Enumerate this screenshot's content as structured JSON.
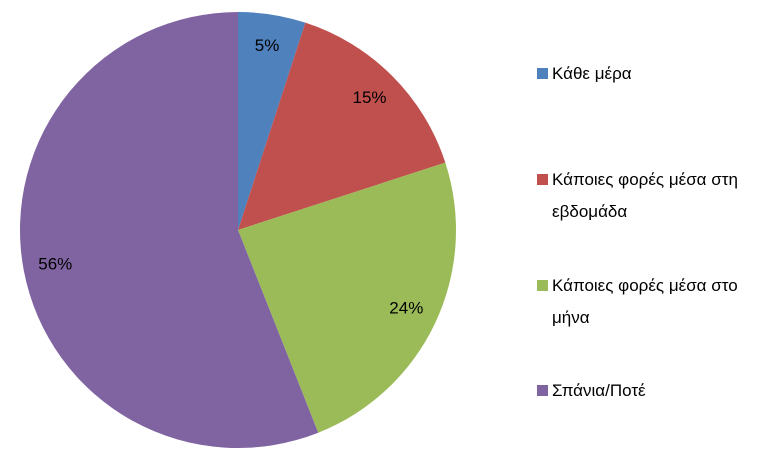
{
  "chart_data": {
    "type": "pie",
    "categories": [
      "Κάθε μέρα",
      "Κάποιες φορές μέσα στη εβδομάδα",
      "Κάποιες φορές μέσα στο μήνα",
      "Σπάνια/Ποτέ"
    ],
    "values": [
      5,
      15,
      24,
      56
    ],
    "value_labels": [
      "5%",
      "15%",
      "24%",
      "56%"
    ],
    "colors": [
      "#4f81bd",
      "#c0504d",
      "#9bbb59",
      "#8064a2"
    ],
    "legend": "right"
  }
}
